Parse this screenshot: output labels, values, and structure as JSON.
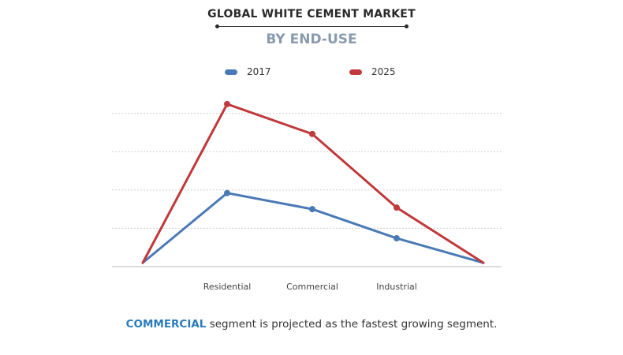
{
  "header": {
    "title": "GLOBAL WHITE CEMENT MARKET",
    "subtitle": "BY END-USE"
  },
  "footnote": {
    "highlight": "COMMERCIAL",
    "text": " segment is projected as the fastest growing segment."
  },
  "chart_data": {
    "type": "line",
    "title": "GLOBAL WHITE CEMENT MARKET",
    "subtitle": "BY END-USE",
    "categories": [
      "Residential",
      "Commercial",
      "Industrial"
    ],
    "series": [
      {
        "name": "2017",
        "color": "#4a7ab5",
        "values": [
          0.96,
          0.75,
          0.37
        ]
      },
      {
        "name": "2025",
        "color": "#c0393b",
        "values": [
          2.12,
          1.73,
          0.77
        ]
      }
    ],
    "endpoint_value": 0.05,
    "ylim": [
      0,
      2.5
    ],
    "y_gridlines": [
      0.5,
      1.0,
      1.5,
      2.0,
      2.5
    ],
    "y_tick_labels_shown": false,
    "legend_position": "top-center",
    "grid": true
  }
}
